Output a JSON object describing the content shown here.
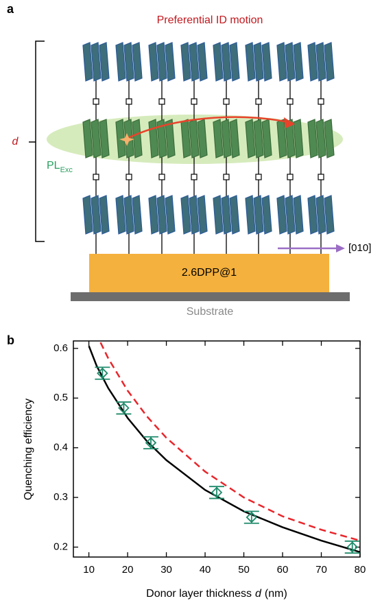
{
  "panel_a": {
    "label": "a",
    "title": "Preferential ID motion",
    "thickness": "d",
    "pl": "PL",
    "pl_sub": "Exc",
    "direction": "[010]",
    "layer": "2.6DPP@1",
    "substrate": "Substrate"
  },
  "chart_data": {
    "type": "scatter",
    "panel_label": "b",
    "x_label": {
      "text": "Donor layer thickness",
      "var": "d",
      "unit": "(nm)"
    },
    "y_label": "Quenching efficiency",
    "xlim": [
      6,
      80
    ],
    "ylim": [
      0.18,
      0.615
    ],
    "xticks": [
      10,
      20,
      30,
      40,
      50,
      60,
      70,
      80
    ],
    "yticks": [
      0.2,
      0.3,
      0.4,
      0.5,
      0.6
    ],
    "points": {
      "color": "#1e8a6a",
      "x": [
        13.5,
        19,
        26,
        43,
        52,
        78
      ],
      "values": [
        0.55,
        0.48,
        0.41,
        0.31,
        0.26,
        0.2
      ],
      "errors": [
        0.012,
        0.012,
        0.012,
        0.012,
        0.012,
        0.012
      ]
    },
    "lines": [
      {
        "color": "#000000",
        "style": "solid",
        "x": [
          10,
          12,
          15,
          20,
          25,
          30,
          40,
          50,
          60,
          70,
          80
        ],
        "values": [
          0.605,
          0.565,
          0.52,
          0.46,
          0.413,
          0.375,
          0.315,
          0.272,
          0.24,
          0.213,
          0.19
        ]
      },
      {
        "color": "#e8262b",
        "style": "dashed",
        "x": [
          13,
          15,
          20,
          25,
          30,
          40,
          50,
          60,
          70,
          80
        ],
        "values": [
          0.612,
          0.58,
          0.515,
          0.463,
          0.42,
          0.352,
          0.3,
          0.262,
          0.235,
          0.213
        ]
      }
    ]
  }
}
